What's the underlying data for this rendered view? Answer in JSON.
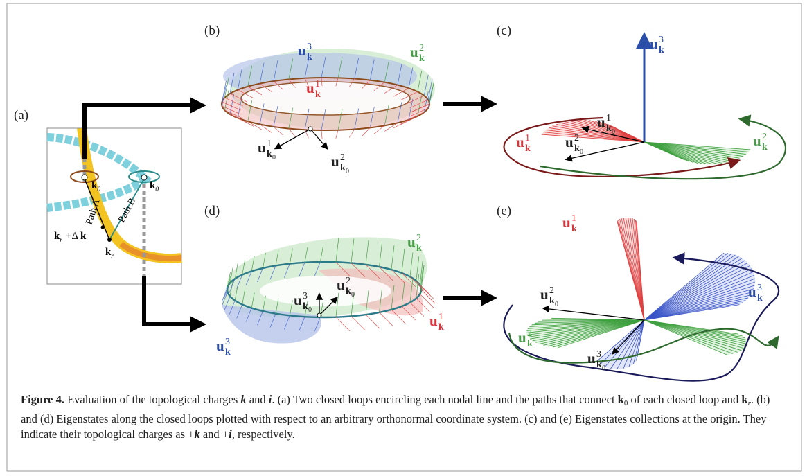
{
  "figure": {
    "panels": [
      "(a)",
      "(b)",
      "(c)",
      "(d)",
      "(e)"
    ],
    "panel_a": {
      "k0": {
        "base": "k",
        "sub": "0"
      },
      "path_a": "Path A",
      "path_b": "Path B",
      "kr_dk": {
        "base": "k",
        "sub": "r",
        "rest": "+Δ",
        "rest_bold": "k"
      },
      "kr": {
        "base": "k",
        "sub": "r"
      }
    },
    "vectors": {
      "u1": {
        "base": "u",
        "sub": "k",
        "sup": "1"
      },
      "u2": {
        "base": "u",
        "sub": "k",
        "sup": "2"
      },
      "u3": {
        "base": "u",
        "sub": "k",
        "sup": "3"
      },
      "u0_1": {
        "base": "u",
        "sub": "k",
        "subsub": "0",
        "sup": "1"
      },
      "u0_2": {
        "base": "u",
        "sub": "k",
        "subsub": "0",
        "sup": "2"
      },
      "u0_3": {
        "base": "u",
        "sub": "k",
        "subsub": "0",
        "sup": "3"
      }
    },
    "colors": {
      "red": "#d8353a",
      "green": "#4a9e4a",
      "blue": "#2b4fa8",
      "black": "#222222"
    },
    "caption": [
      {
        "text": "Figure 4.",
        "style": "bold"
      },
      {
        "text": "  Evaluation of the topological charges ",
        "style": "normal"
      },
      {
        "text": "k",
        "style": "bold-italic"
      },
      {
        "text": " and ",
        "style": "normal"
      },
      {
        "text": "i",
        "style": "bold-italic"
      },
      {
        "text": ". (a) Two closed loops encircling each nodal line and the paths that connect ",
        "style": "normal"
      },
      {
        "text": "k",
        "style": "bold"
      },
      {
        "text": "0",
        "style": "sub"
      },
      {
        "text": " of each closed loop and ",
        "style": "normal"
      },
      {
        "text": "k",
        "style": "bold"
      },
      {
        "text": "r",
        "style": "sub-italic"
      },
      {
        "text": ". (b) and (d) Eigenstates along the closed loops plotted with respect to an arbitrary orthonormal coordinate system. (c) and (e) Eigenstates collections at the origin. They indicate their topological charges as ",
        "style": "normal"
      },
      {
        "text": "+",
        "style": "normal"
      },
      {
        "text": "k",
        "style": "bold-italic"
      },
      {
        "text": " and ",
        "style": "normal"
      },
      {
        "text": "+",
        "style": "normal"
      },
      {
        "text": "i",
        "style": "bold-italic"
      },
      {
        "text": ", respectively.",
        "style": "normal"
      }
    ]
  }
}
